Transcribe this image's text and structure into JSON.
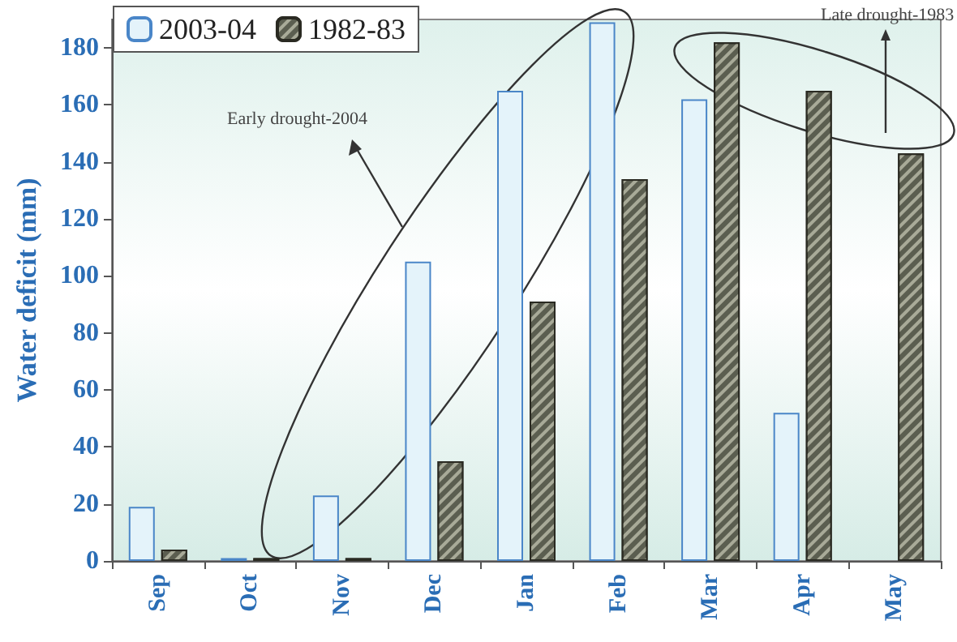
{
  "chart_data": {
    "type": "bar",
    "ylabel": "Water deficit (mm)",
    "categories": [
      "Sep",
      "Oct",
      "Nov",
      "Dec",
      "Jan",
      "Feb",
      "Mar",
      "Apr",
      "May"
    ],
    "series": [
      {
        "name": "2003-04",
        "color": "#e4f3fa",
        "values": [
          19,
          1,
          23,
          105,
          165,
          189,
          162,
          52,
          0
        ]
      },
      {
        "name": "1982-83",
        "color": "#5b5e50",
        "values": [
          4,
          1,
          1,
          35,
          91,
          134,
          182,
          165,
          143
        ]
      }
    ],
    "ylim": [
      0,
      190
    ],
    "yticks": [
      0,
      20,
      40,
      60,
      80,
      100,
      120,
      140,
      160,
      180
    ],
    "annotations": [
      "Early drought-2004",
      "Late drought-1983"
    ],
    "grid": false,
    "legend": "top left"
  }
}
